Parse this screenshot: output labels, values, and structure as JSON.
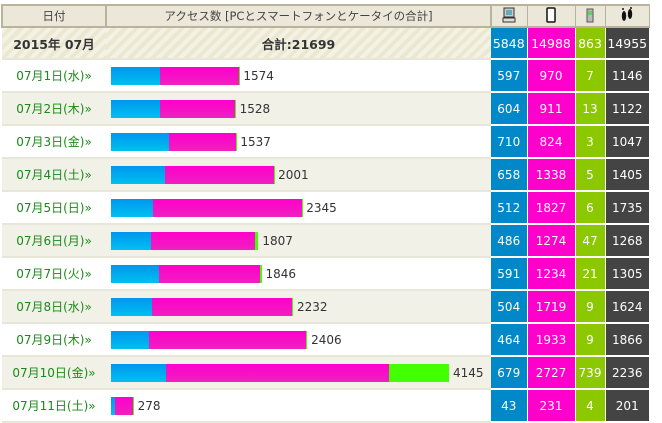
{
  "header": {
    "date": "日付",
    "access": "アクセス数 [PCとスマートフォンとケータイの合計]",
    "pc_icon": "pc-icon",
    "smartphone_icon": "smartphone-icon",
    "mobile_icon": "mobile-phone-icon",
    "footprint_icon": "footprint-icon"
  },
  "summary": {
    "month": "2015年 07月",
    "total": "合計:21699",
    "pc": "5848",
    "smartphone": "14988",
    "mobile": "863",
    "footprint": "14955"
  },
  "colors": {
    "pc": "#0088c8",
    "smartphone": "#ff00cc",
    "mobile": "#8cc800",
    "footprint": "#444444"
  },
  "rows": [
    {
      "date": "07月1日(水)»",
      "total": 1574,
      "pc": 597,
      "sp": 970,
      "mb": 7,
      "ft": 1146
    },
    {
      "date": "07月2日(木)»",
      "total": 1528,
      "pc": 604,
      "sp": 911,
      "mb": 13,
      "ft": 1122
    },
    {
      "date": "07月3日(金)»",
      "total": 1537,
      "pc": 710,
      "sp": 824,
      "mb": 3,
      "ft": 1047
    },
    {
      "date": "07月4日(土)»",
      "total": 2001,
      "pc": 658,
      "sp": 1338,
      "mb": 5,
      "ft": 1405
    },
    {
      "date": "07月5日(日)»",
      "total": 2345,
      "pc": 512,
      "sp": 1827,
      "mb": 6,
      "ft": 1735
    },
    {
      "date": "07月6日(月)»",
      "total": 1807,
      "pc": 486,
      "sp": 1274,
      "mb": 47,
      "ft": 1268
    },
    {
      "date": "07月7日(火)»",
      "total": 1846,
      "pc": 591,
      "sp": 1234,
      "mb": 21,
      "ft": 1305
    },
    {
      "date": "07月8日(水)»",
      "total": 2232,
      "pc": 504,
      "sp": 1719,
      "mb": 9,
      "ft": 1624
    },
    {
      "date": "07月9日(木)»",
      "total": 2406,
      "pc": 464,
      "sp": 1933,
      "mb": 9,
      "ft": 1866
    },
    {
      "date": "07月10日(金)»",
      "total": 4145,
      "pc": 679,
      "sp": 2727,
      "mb": 739,
      "ft": 2236
    },
    {
      "date": "07月11日(土)»",
      "total": 278,
      "pc": 43,
      "sp": 231,
      "mb": 4,
      "ft": 201
    }
  ]
}
